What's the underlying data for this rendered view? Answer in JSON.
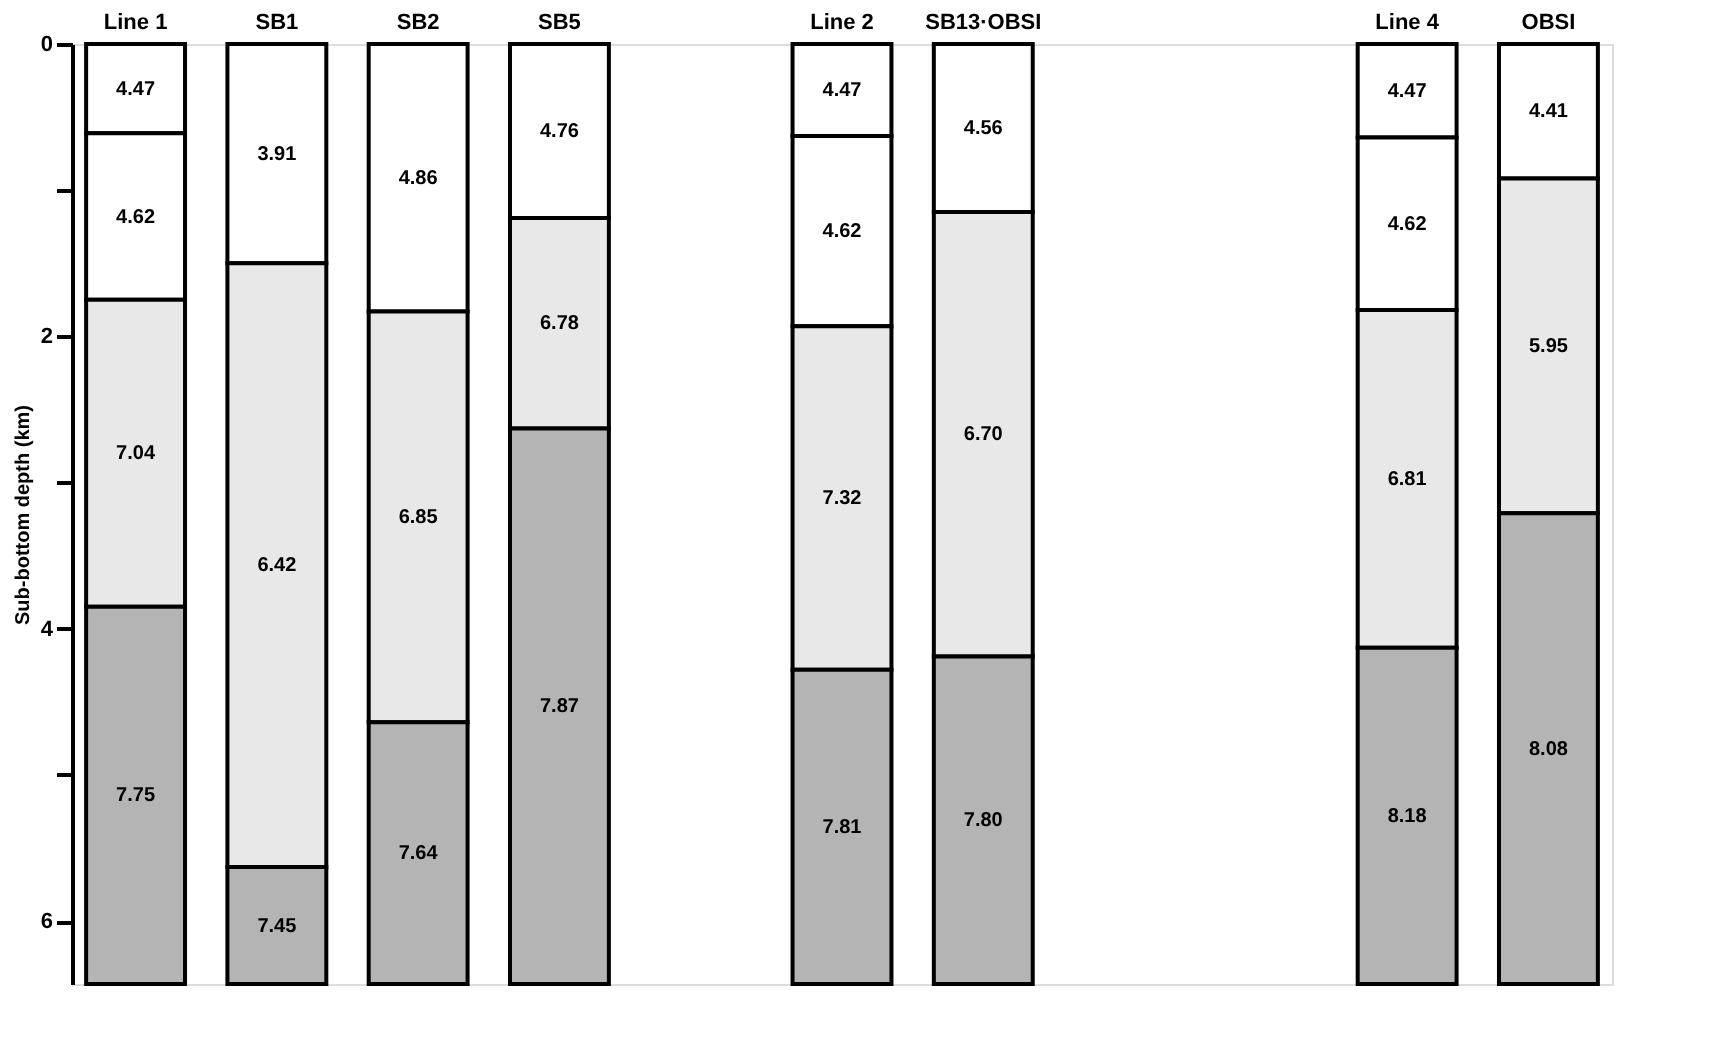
{
  "chart_data": {
    "type": "bar",
    "stacked": true,
    "ylabel": "Sub-bottom depth (km)",
    "categories": [
      "Line 1",
      "SB1",
      "SB2",
      "SB5",
      null,
      "Line 2",
      "SB13·OBSI",
      null,
      null,
      "Line 4",
      "OBSI"
    ],
    "ylim": [
      6.43,
      0
    ],
    "yticks": [
      0,
      {
        "value": 1,
        "label": null
      },
      2,
      {
        "value": 3,
        "label": null
      },
      4,
      {
        "value": 5,
        "label": null
      },
      6
    ],
    "grid": false,
    "series": [
      {
        "values": [
          0.61,
          1.5,
          1.83,
          1.19,
          null,
          0.63,
          1.15,
          null,
          null,
          0.64,
          0.92
        ],
        "colors": [
          "#ffffff",
          "#ffffff",
          "#ffffff",
          "#ffffff",
          null,
          "#ffffff",
          "#ffffff",
          null,
          null,
          "#ffffff",
          "#ffffff"
        ]
      },
      {
        "values": [
          1.14,
          4.13,
          2.81,
          1.44,
          null,
          1.3,
          3.04,
          null,
          null,
          1.18,
          2.29
        ],
        "colors": [
          "#ffffff",
          "#e8e8e8",
          "#e8e8e8",
          "#e8e8e8",
          null,
          "#ffffff",
          "#e8e8e8",
          null,
          null,
          "#ffffff",
          "#e8e8e8"
        ]
      },
      {
        "values": [
          2.1,
          0.8,
          1.79,
          3.8,
          null,
          2.35,
          2.24,
          null,
          null,
          2.31,
          3.22
        ],
        "colors": [
          "#e8e8e8",
          "#b4b4b4",
          "#b4b4b4",
          "#b4b4b4",
          null,
          "#e8e8e8",
          "#b4b4b4",
          null,
          null,
          "#e8e8e8",
          "#b4b4b4"
        ]
      },
      {
        "values": [
          2.58,
          null,
          null,
          null,
          null,
          2.15,
          null,
          null,
          null,
          2.3,
          null
        ],
        "colors": [
          "#b4b4b4",
          null,
          null,
          null,
          null,
          "#b4b4b4",
          null,
          null,
          null,
          "#b4b4b4",
          null
        ]
      }
    ],
    "annotations": [
      "4.47",
      "4.62",
      "7.04",
      "7.75",
      "3.91",
      "6.42",
      "7.45",
      "4.86",
      "6.85",
      "7.64",
      "4.76",
      "6.78",
      "7.87",
      "4.47",
      "4.62",
      "7.32",
      "7.81",
      "4.56",
      "6.70",
      "7.80",
      "4.47",
      "4.62",
      "6.81",
      "8.18",
      "4.41",
      "5.95",
      "8.08"
    ]
  }
}
